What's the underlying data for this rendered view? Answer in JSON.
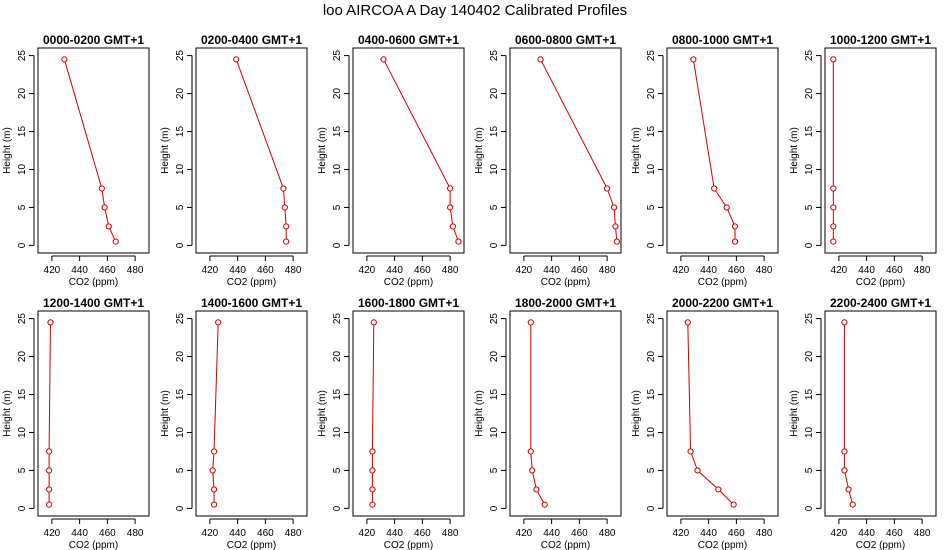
{
  "page": {
    "title": "loo AIRCOA A  Day 140402  Calibrated Profiles"
  },
  "colors": {
    "series": "#cc0000",
    "axis": "#000000"
  },
  "chart_data": [
    {
      "type": "line",
      "title": "0000-0200 GMT+1",
      "xlabel": "CO2 (ppm)",
      "ylabel": "Height (m)",
      "xlim": [
        410,
        490
      ],
      "ylim": [
        0,
        25
      ],
      "xticks": [
        420,
        440,
        460,
        480
      ],
      "yticks": [
        0,
        5,
        10,
        15,
        20,
        25
      ],
      "series": [
        {
          "x": [
            466,
            461,
            458,
            456,
            429
          ],
          "y": [
            0.5,
            2.5,
            5,
            7.5,
            24.5
          ]
        }
      ]
    },
    {
      "type": "line",
      "title": "0200-0400 GMT+1",
      "xlabel": "CO2 (ppm)",
      "ylabel": "Height (m)",
      "xlim": [
        410,
        490
      ],
      "ylim": [
        0,
        25
      ],
      "xticks": [
        420,
        440,
        460,
        480
      ],
      "yticks": [
        0,
        5,
        10,
        15,
        20,
        25
      ],
      "series": [
        {
          "x": [
            475,
            475,
            474,
            473,
            439
          ],
          "y": [
            0.5,
            2.5,
            5,
            7.5,
            24.5
          ]
        }
      ]
    },
    {
      "type": "line",
      "title": "0400-0600 GMT+1",
      "xlabel": "CO2 (ppm)",
      "ylabel": "Height (m)",
      "xlim": [
        410,
        490
      ],
      "ylim": [
        0,
        25
      ],
      "xticks": [
        420,
        440,
        460,
        480
      ],
      "yticks": [
        0,
        5,
        10,
        15,
        20,
        25
      ],
      "series": [
        {
          "x": [
            486,
            482,
            480,
            480,
            432
          ],
          "y": [
            0.5,
            2.5,
            5,
            7.5,
            24.5
          ]
        }
      ]
    },
    {
      "type": "line",
      "title": "0600-0800 GMT+1",
      "xlabel": "CO2 (ppm)",
      "ylabel": "Height (m)",
      "xlim": [
        410,
        490
      ],
      "ylim": [
        0,
        25
      ],
      "xticks": [
        420,
        440,
        460,
        480
      ],
      "yticks": [
        0,
        5,
        10,
        15,
        20,
        25
      ],
      "series": [
        {
          "x": [
            487,
            486,
            485,
            480,
            432
          ],
          "y": [
            0.5,
            2.5,
            5,
            7.5,
            24.5
          ]
        }
      ]
    },
    {
      "type": "line",
      "title": "0800-1000 GMT+1",
      "xlabel": "CO2 (ppm)",
      "ylabel": "Height (m)",
      "xlim": [
        410,
        490
      ],
      "ylim": [
        0,
        25
      ],
      "xticks": [
        420,
        440,
        460,
        480
      ],
      "yticks": [
        0,
        5,
        10,
        15,
        20,
        25
      ],
      "series": [
        {
          "x": [
            459,
            459,
            453,
            444,
            429
          ],
          "y": [
            0.5,
            2.5,
            5,
            7.5,
            24.5
          ]
        }
      ]
    },
    {
      "type": "line",
      "title": "1000-1200 GMT+1",
      "xlabel": "CO2 (ppm)",
      "ylabel": "Height (m)",
      "xlim": [
        410,
        490
      ],
      "ylim": [
        0,
        25
      ],
      "xticks": [
        420,
        440,
        460,
        480
      ],
      "yticks": [
        0,
        5,
        10,
        15,
        20,
        25
      ],
      "series": [
        {
          "x": [
            416,
            416,
            416,
            416,
            416
          ],
          "y": [
            0.5,
            2.5,
            5,
            7.5,
            24.5
          ]
        }
      ]
    },
    {
      "type": "line",
      "title": "1200-1400 GMT+1",
      "xlabel": "CO2 (ppm)",
      "ylabel": "Height (m)",
      "xlim": [
        410,
        490
      ],
      "ylim": [
        0,
        25
      ],
      "xticks": [
        420,
        440,
        460,
        480
      ],
      "yticks": [
        0,
        5,
        10,
        15,
        20,
        25
      ],
      "series": [
        {
          "x": [
            418,
            418,
            418,
            418,
            419
          ],
          "y": [
            0.5,
            2.5,
            5,
            7.5,
            24.5
          ]
        }
      ]
    },
    {
      "type": "line",
      "title": "1400-1600 GMT+1",
      "xlabel": "CO2 (ppm)",
      "ylabel": "Height (m)",
      "xlim": [
        410,
        490
      ],
      "ylim": [
        0,
        25
      ],
      "xticks": [
        420,
        440,
        460,
        480
      ],
      "yticks": [
        0,
        5,
        10,
        15,
        20,
        25
      ],
      "series": [
        {
          "x": [
            423,
            423,
            422,
            423,
            426
          ],
          "y": [
            0.5,
            2.5,
            5,
            7.5,
            24.5
          ]
        }
      ]
    },
    {
      "type": "line",
      "title": "1600-1800 GMT+1",
      "xlabel": "CO2 (ppm)",
      "ylabel": "Height (m)",
      "xlim": [
        410,
        490
      ],
      "ylim": [
        0,
        25
      ],
      "xticks": [
        420,
        440,
        460,
        480
      ],
      "yticks": [
        0,
        5,
        10,
        15,
        20,
        25
      ],
      "series": [
        {
          "x": [
            424,
            424,
            424,
            424,
            425
          ],
          "y": [
            0.5,
            2.5,
            5,
            7.5,
            24.5
          ]
        }
      ]
    },
    {
      "type": "line",
      "title": "1800-2000 GMT+1",
      "xlabel": "CO2 (ppm)",
      "ylabel": "Height (m)",
      "xlim": [
        410,
        490
      ],
      "ylim": [
        0,
        25
      ],
      "xticks": [
        420,
        440,
        460,
        480
      ],
      "yticks": [
        0,
        5,
        10,
        15,
        20,
        25
      ],
      "series": [
        {
          "x": [
            435,
            429,
            426,
            425,
            425
          ],
          "y": [
            0.5,
            2.5,
            5,
            7.5,
            24.5
          ]
        }
      ]
    },
    {
      "type": "line",
      "title": "2000-2200 GMT+1",
      "xlabel": "CO2 (ppm)",
      "ylabel": "Height (m)",
      "xlim": [
        410,
        490
      ],
      "ylim": [
        0,
        25
      ],
      "xticks": [
        420,
        440,
        460,
        480
      ],
      "yticks": [
        0,
        5,
        10,
        15,
        20,
        25
      ],
      "series": [
        {
          "x": [
            458,
            447,
            432,
            427,
            425
          ],
          "y": [
            0.5,
            2.5,
            5,
            7.5,
            24.5
          ]
        }
      ]
    },
    {
      "type": "line",
      "title": "2200-2400 GMT+1",
      "xlabel": "CO2 (ppm)",
      "ylabel": "Height (m)",
      "xlim": [
        410,
        490
      ],
      "ylim": [
        0,
        25
      ],
      "xticks": [
        420,
        440,
        460,
        480
      ],
      "yticks": [
        0,
        5,
        10,
        15,
        20,
        25
      ],
      "series": [
        {
          "x": [
            430,
            427,
            424,
            424,
            424
          ],
          "y": [
            0.5,
            2.5,
            5,
            7.5,
            24.5
          ]
        }
      ]
    }
  ]
}
